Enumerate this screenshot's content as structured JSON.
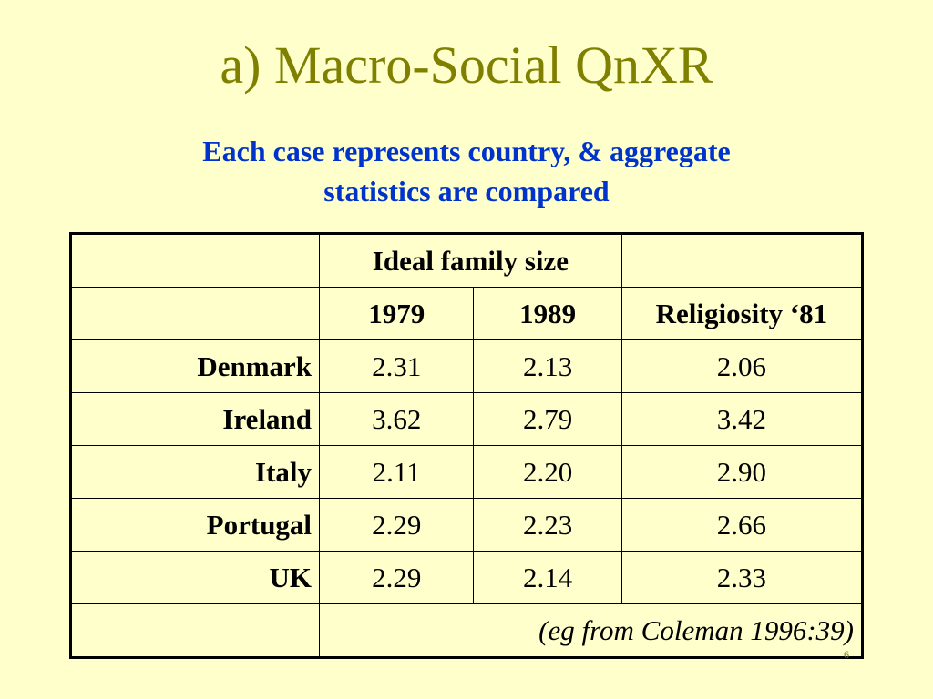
{
  "slide": {
    "title": "a) Macro-Social QnXR",
    "subtitle_line1": "Each case represents country, & aggregate",
    "subtitle_line2": "statistics are compared",
    "page_number": "6"
  },
  "table": {
    "group_header": "Ideal family size",
    "col_1979": "1979",
    "col_1989": "1989",
    "col_religiosity": "Religiosity ‘81",
    "rows": [
      {
        "country": "Denmark",
        "v1979": "2.31",
        "v1989": "2.13",
        "religiosity": "2.06"
      },
      {
        "country": "Ireland",
        "v1979": "3.62",
        "v1989": "2.79",
        "religiosity": "3.42"
      },
      {
        "country": "Italy",
        "v1979": "2.11",
        "v1989": "2.20",
        "religiosity": "2.90"
      },
      {
        "country": "Portugal",
        "v1979": "2.29",
        "v1989": "2.23",
        "religiosity": "2.66"
      },
      {
        "country": "UK",
        "v1979": "2.29",
        "v1989": "2.14",
        "religiosity": "2.33"
      }
    ],
    "source": "(eg from Coleman 1996:39)"
  }
}
